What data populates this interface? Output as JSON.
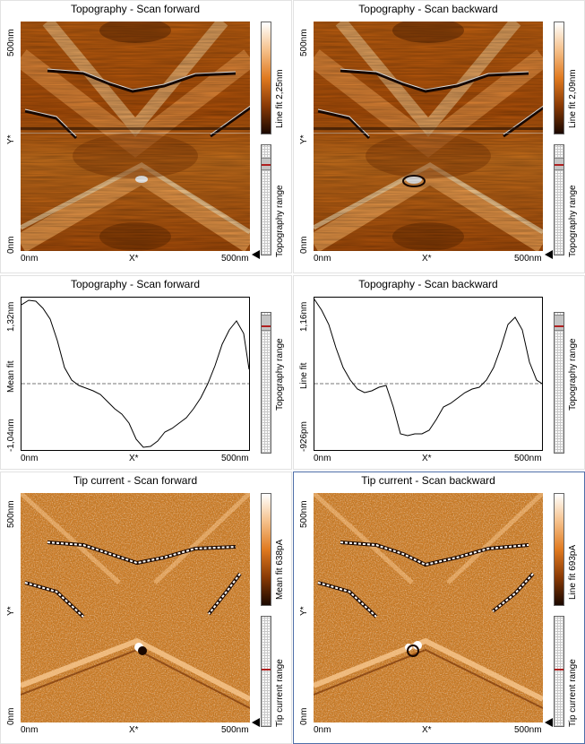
{
  "panels": [
    {
      "id": "p1",
      "title": "Topography - Scan forward",
      "y_top": "500nm",
      "y_mid": "Y*",
      "y_bottom": "0nm",
      "x_left": "0nm",
      "x_mid": "X*",
      "x_right": "500nm",
      "colorbar_label": "Line fit 2,25nm",
      "range_label": "Topography range"
    },
    {
      "id": "p2",
      "title": "Topography - Scan backward",
      "y_top": "500nm",
      "y_mid": "Y*",
      "y_bottom": "0nm",
      "x_left": "0nm",
      "x_mid": "X*",
      "x_right": "500nm",
      "colorbar_label": "Line fit 2,09nm",
      "range_label": "Topography range"
    },
    {
      "id": "p3",
      "title": "Topography - Scan forward",
      "y_top": "1,32nm",
      "y_mid": "Mean fit",
      "y_bottom": "-1,04nm",
      "x_left": "0nm",
      "x_mid": "X*",
      "x_right": "500nm",
      "range_label": "Topography range"
    },
    {
      "id": "p4",
      "title": "Topography - Scan backward",
      "y_top": "1,16nm",
      "y_mid": "Line fit",
      "y_bottom": "-926pm",
      "x_left": "0nm",
      "x_mid": "X*",
      "x_right": "500nm",
      "range_label": "Topography range"
    },
    {
      "id": "p5",
      "title": "Tip current - Scan forward",
      "y_top": "500nm",
      "y_mid": "Y*",
      "y_bottom": "0nm",
      "x_left": "0nm",
      "x_mid": "X*",
      "x_right": "500nm",
      "colorbar_label": "Mean fit 638pA",
      "range_label": "Tip current range"
    },
    {
      "id": "p6",
      "title": "Tip current - Scan backward",
      "y_top": "500nm",
      "y_mid": "Y*",
      "y_bottom": "0nm",
      "x_left": "0nm",
      "x_mid": "X*",
      "x_right": "500nm",
      "colorbar_label": "Line fit 693pA",
      "range_label": "Tip current range"
    }
  ],
  "colors": {
    "accent": "#e07a20",
    "active_border": "#4f6fa8",
    "range_marker": "#b02020"
  }
}
